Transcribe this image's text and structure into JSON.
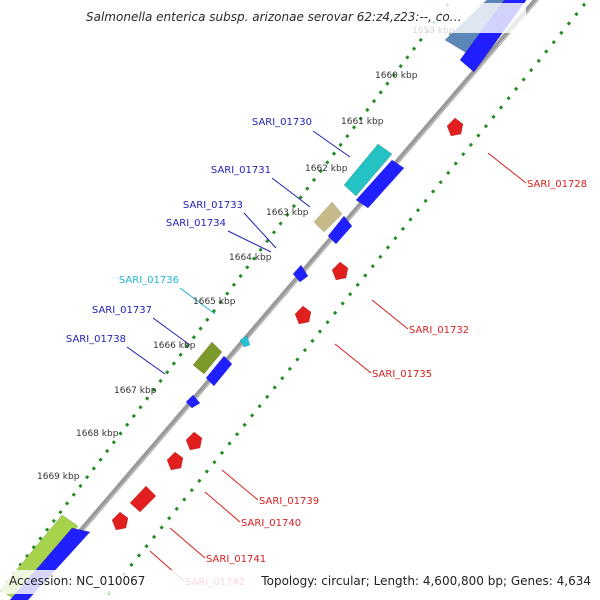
{
  "title": "Salmonella enterica subsp. arizonae serovar 62:z4,z23:--, co…",
  "footer": {
    "accession_label": "Accession:",
    "accession": "NC_010067",
    "topology_label": "Topology:",
    "topology": "circular",
    "length_label": "Length:",
    "length": "4,600,800 bp",
    "genes_label": "Genes:",
    "genes": "4,634"
  },
  "colors": {
    "backbone": "#8c8c8c",
    "forward_tick": "#228b22",
    "reverse_tick": "#228b22",
    "forward_label": "#1f1fb4",
    "reverse_label": "#d71f1f",
    "cds_forward": "#1f1fff",
    "cds_reverse": "#e21f1f",
    "rna_highlight": "#22c4d6"
  },
  "kbp_ticks": [
    "1659 kbp",
    "1660 kbp",
    "1661 kbp",
    "1662 kbp",
    "1663 kbp",
    "1664 kbp",
    "1665 kbp",
    "1666 kbp",
    "1667 kbp",
    "1668 kbp",
    "1669 kbp"
  ],
  "forward_genes": [
    {
      "label": "SARI_01730",
      "color": "#1f1fb4"
    },
    {
      "label": "SARI_01731",
      "color": "#1f1fb4"
    },
    {
      "label": "SARI_01733",
      "color": "#1f1fb4"
    },
    {
      "label": "SARI_01734",
      "color": "#1f1fb4"
    },
    {
      "label": "SARI_01736",
      "color": "#22b4d6"
    },
    {
      "label": "SARI_01737",
      "color": "#1f1fb4"
    },
    {
      "label": "SARI_01738",
      "color": "#1f1fb4"
    }
  ],
  "reverse_genes": [
    {
      "label": "SARI_01728"
    },
    {
      "label": "SARI_01732"
    },
    {
      "label": "SARI_01735"
    },
    {
      "label": "SARI_01739"
    },
    {
      "label": "SARI_01740"
    },
    {
      "label": "SARI_01741"
    },
    {
      "label": "SARI_01742"
    }
  ]
}
